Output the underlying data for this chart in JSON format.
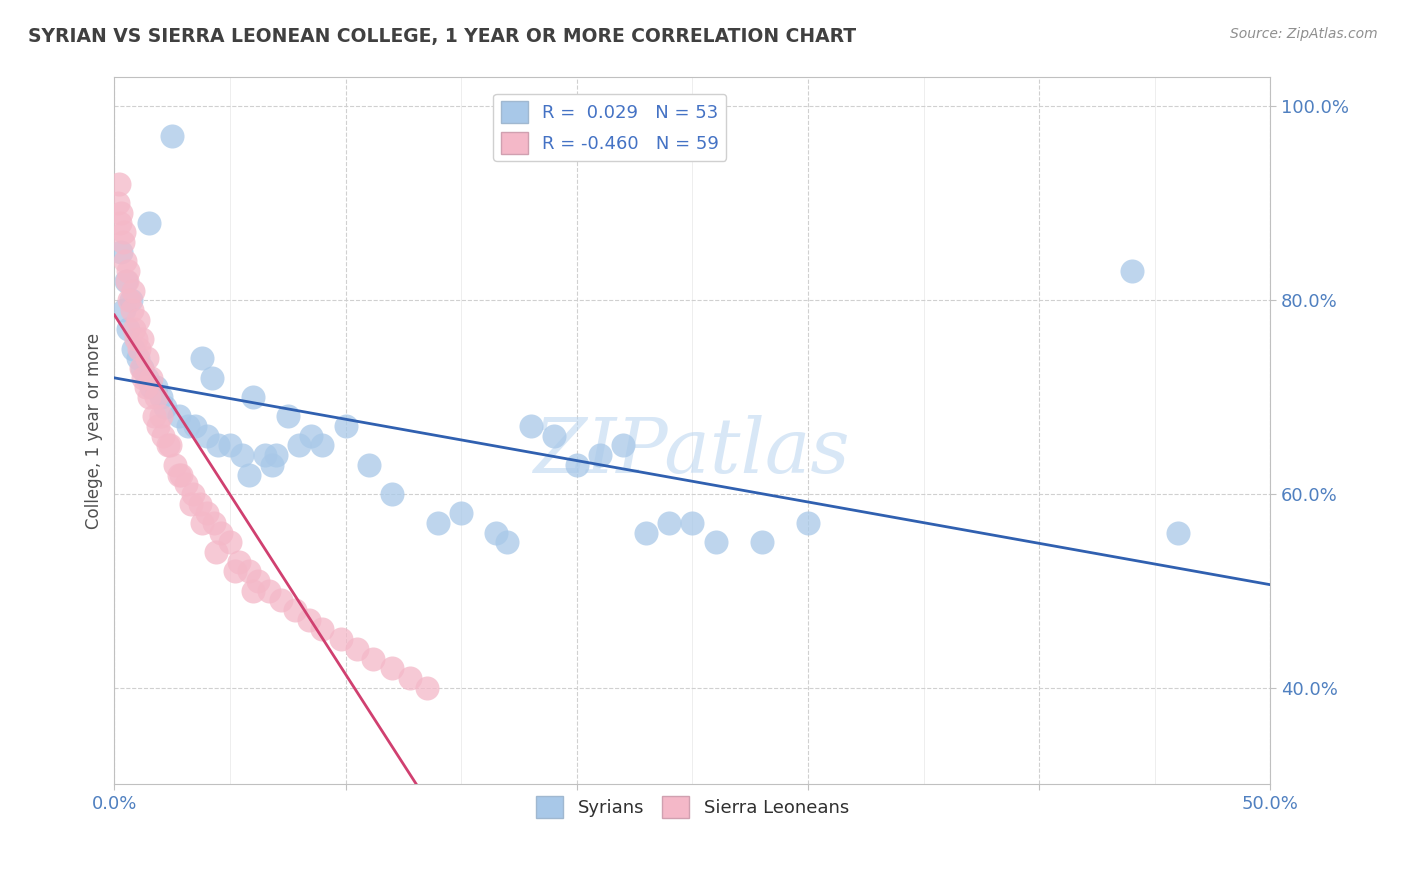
{
  "title": "SYRIAN VS SIERRA LEONEAN COLLEGE, 1 YEAR OR MORE CORRELATION CHART",
  "source_text": "Source: ZipAtlas.com",
  "ylabel_label": "College, 1 year or more",
  "watermark": "ZIPatlas",
  "R_syrian": 0.029,
  "N_syrian": 53,
  "R_sierraleonean": -0.46,
  "N_sierraleonean": 59,
  "xlim": [
    0.0,
    50.0
  ],
  "ylim": [
    30.0,
    103.0
  ],
  "blue_color": "#a8c8e8",
  "pink_color": "#f4b8c8",
  "blue_line_color": "#3060b0",
  "pink_line_color": "#d04070",
  "grid_color": "#d0d0d0",
  "tick_color": "#5080c0",
  "syrian_x": [
    2.5,
    1.5,
    0.3,
    0.5,
    0.7,
    0.4,
    0.6,
    0.8,
    1.0,
    1.2,
    1.4,
    1.6,
    1.8,
    2.0,
    2.2,
    2.8,
    3.2,
    3.5,
    4.0,
    4.5,
    5.0,
    5.5,
    6.5,
    7.0,
    3.8,
    4.2,
    6.0,
    7.5,
    8.5,
    9.0,
    10.0,
    11.0,
    12.0,
    14.0,
    15.0,
    16.5,
    17.0,
    18.0,
    19.0,
    20.0,
    21.0,
    23.0,
    25.0,
    26.0,
    28.0,
    30.0,
    44.0,
    46.0,
    24.0,
    22.0,
    8.0,
    6.8,
    5.8
  ],
  "syrian_y": [
    97.0,
    88.0,
    85.0,
    82.0,
    80.0,
    79.0,
    77.0,
    75.0,
    74.0,
    73.0,
    72.0,
    71.0,
    71.0,
    70.0,
    69.0,
    68.0,
    67.0,
    67.0,
    66.0,
    65.0,
    65.0,
    64.0,
    64.0,
    64.0,
    74.0,
    72.0,
    70.0,
    68.0,
    66.0,
    65.0,
    67.0,
    63.0,
    60.0,
    57.0,
    58.0,
    56.0,
    55.0,
    67.0,
    66.0,
    63.0,
    64.0,
    56.0,
    57.0,
    55.0,
    55.0,
    57.0,
    83.0,
    56.0,
    57.0,
    65.0,
    65.0,
    63.0,
    62.0
  ],
  "sl_x": [
    0.15,
    0.25,
    0.35,
    0.45,
    0.55,
    0.65,
    0.75,
    0.85,
    0.95,
    1.05,
    1.15,
    1.25,
    1.35,
    1.5,
    1.7,
    1.9,
    2.1,
    2.3,
    2.6,
    2.9,
    3.1,
    3.4,
    3.7,
    4.0,
    4.3,
    4.6,
    5.0,
    5.4,
    5.8,
    6.2,
    6.7,
    7.2,
    7.8,
    8.4,
    9.0,
    9.8,
    10.5,
    11.2,
    12.0,
    12.8,
    13.5,
    0.2,
    0.3,
    0.4,
    0.6,
    0.8,
    1.0,
    1.2,
    1.4,
    1.6,
    1.8,
    2.0,
    2.4,
    2.8,
    3.3,
    3.8,
    4.4,
    5.2,
    6.0
  ],
  "sl_y": [
    90.0,
    88.0,
    86.0,
    84.0,
    82.0,
    80.0,
    79.0,
    77.0,
    76.0,
    75.0,
    73.0,
    72.0,
    71.0,
    70.0,
    68.0,
    67.0,
    66.0,
    65.0,
    63.0,
    62.0,
    61.0,
    60.0,
    59.0,
    58.0,
    57.0,
    56.0,
    55.0,
    53.0,
    52.0,
    51.0,
    50.0,
    49.0,
    48.0,
    47.0,
    46.0,
    45.0,
    44.0,
    43.0,
    42.0,
    41.0,
    40.0,
    92.0,
    89.0,
    87.0,
    83.0,
    81.0,
    78.0,
    76.0,
    74.0,
    72.0,
    70.0,
    68.0,
    65.0,
    62.0,
    59.0,
    57.0,
    54.0,
    52.0,
    50.0
  ]
}
